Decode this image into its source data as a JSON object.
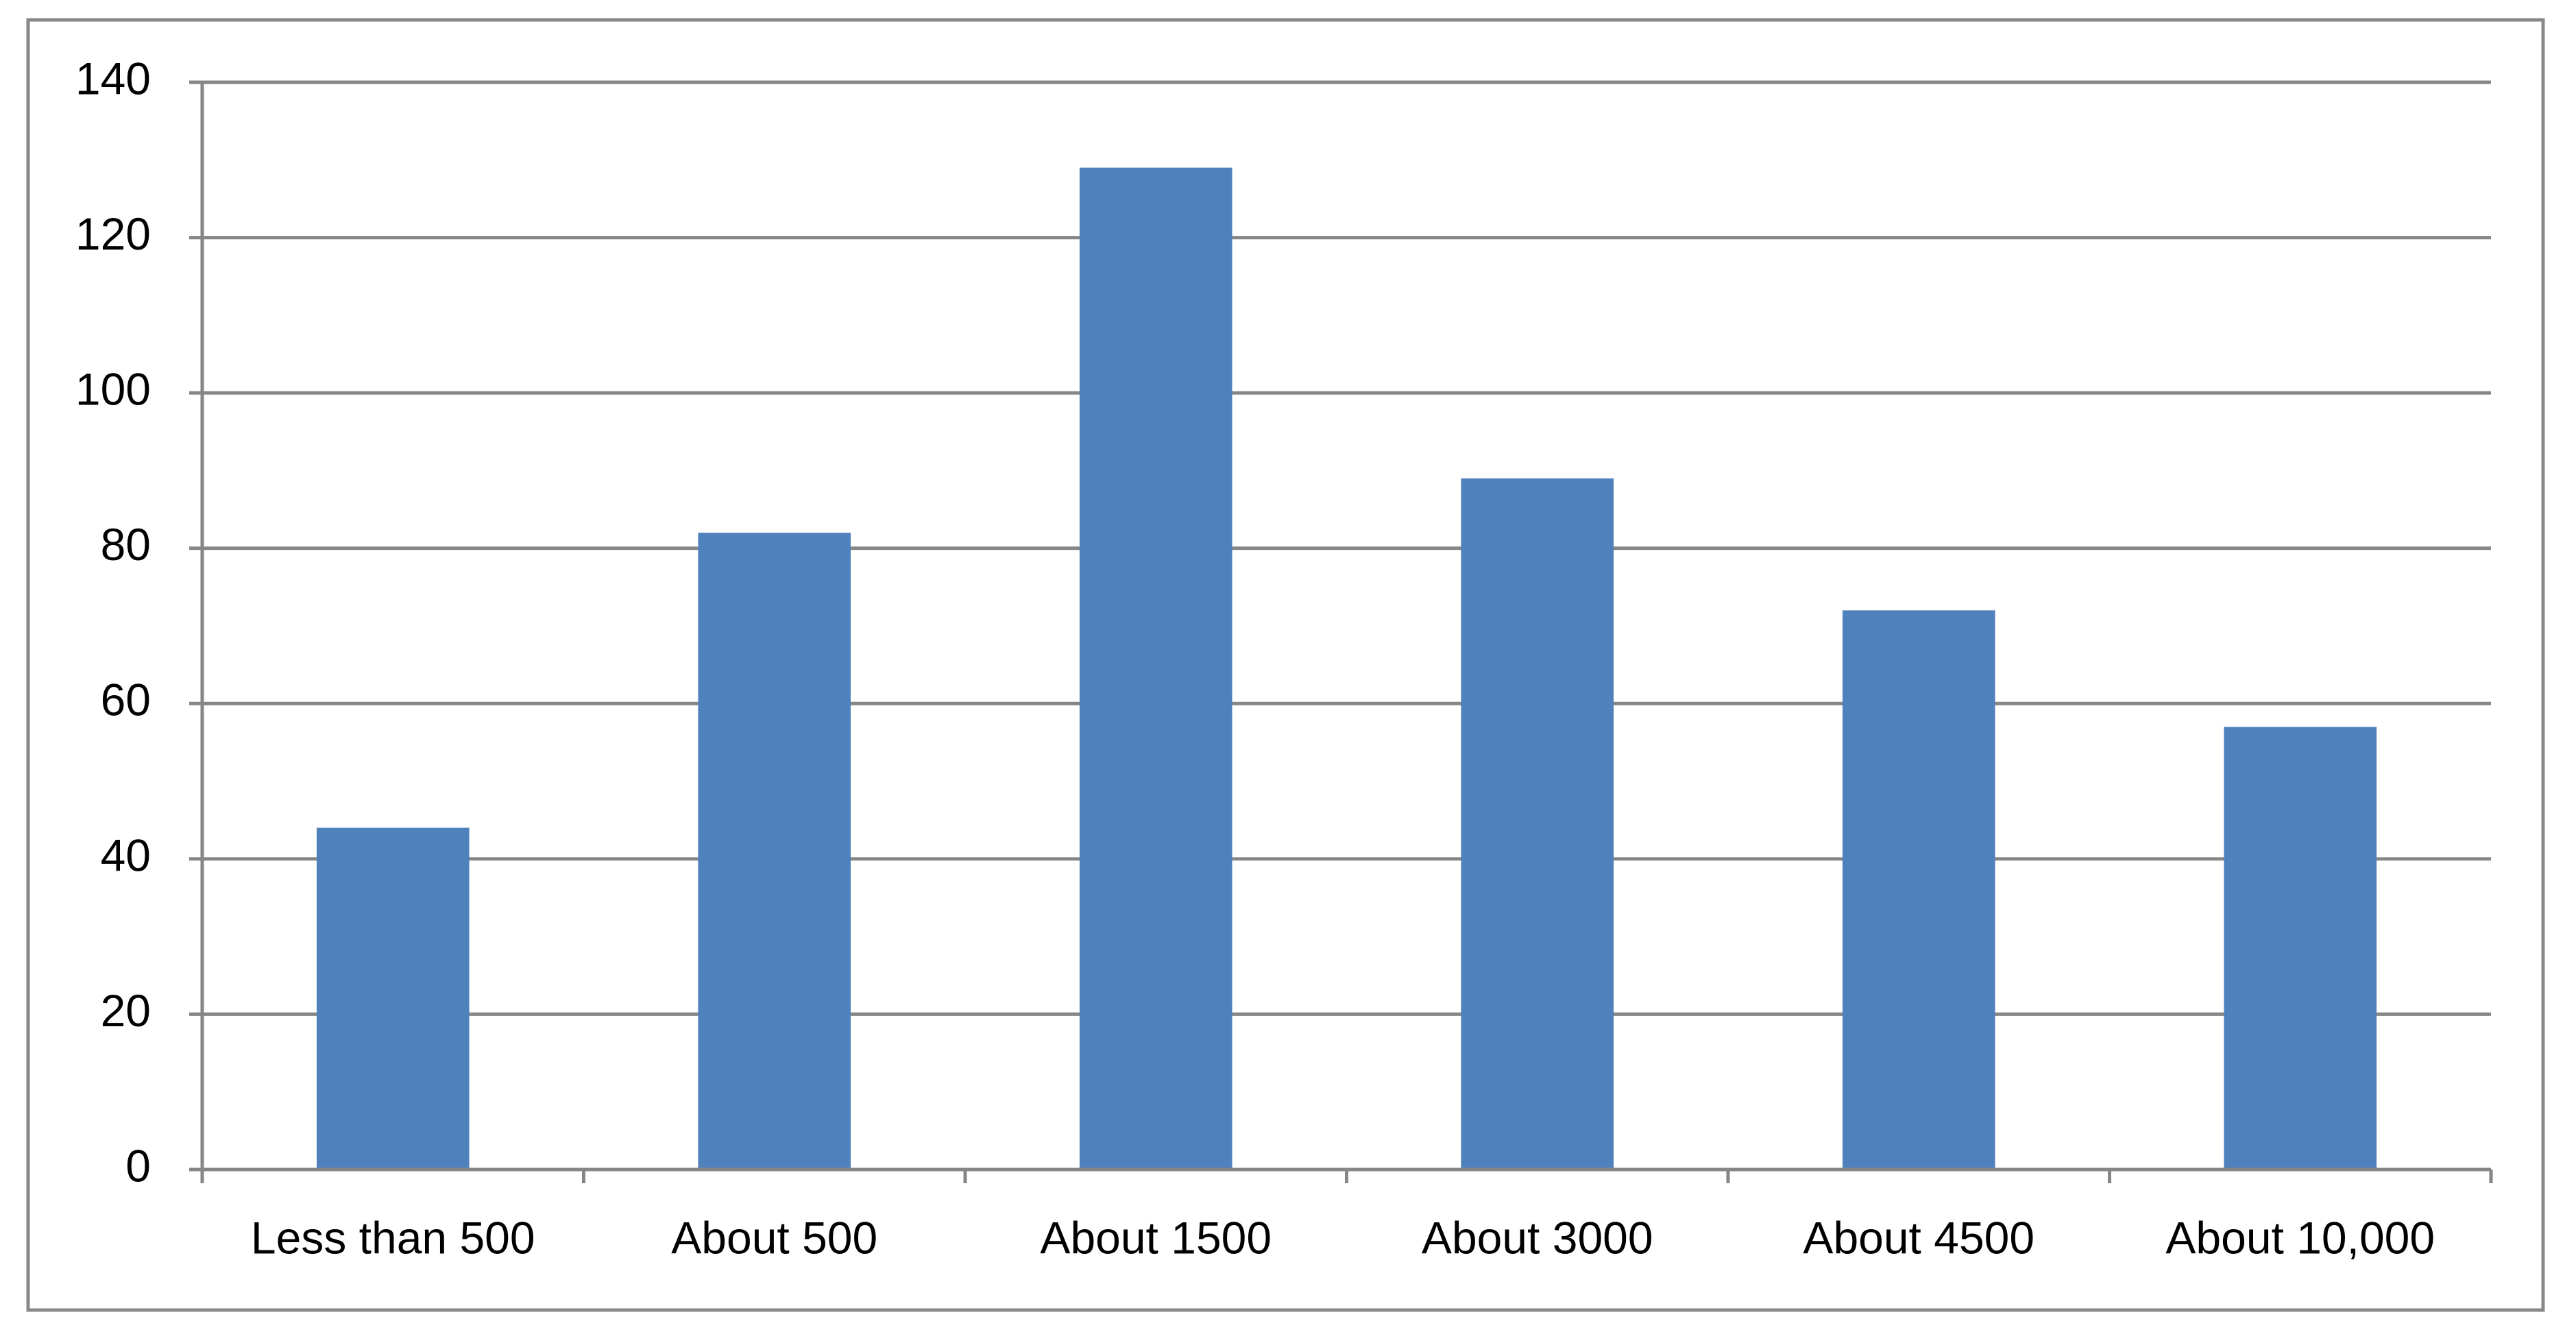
{
  "chart_data": {
    "type": "bar",
    "categories": [
      "Less than 500",
      "About 500",
      "About 1500",
      "About 3000",
      "About 4500",
      "About 10,000"
    ],
    "values": [
      44,
      82,
      129,
      89,
      72,
      57
    ],
    "color": "#4f81bd",
    "ylim": [
      0,
      140
    ],
    "yticks": [
      0,
      20,
      40,
      60,
      80,
      100,
      120,
      140
    ],
    "grid": true
  }
}
